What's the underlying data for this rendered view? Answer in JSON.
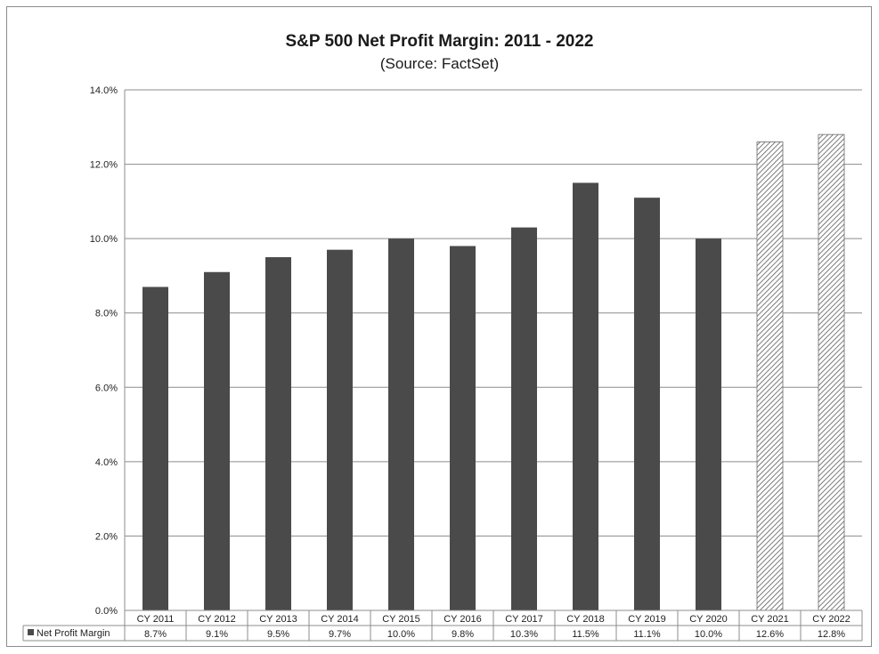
{
  "chart_data": {
    "type": "bar",
    "title": "S&P 500 Net Profit Margin: 2011 - 2022",
    "subtitle": "(Source: FactSet)",
    "categories": [
      "CY 2011",
      "CY 2012",
      "CY 2013",
      "CY 2014",
      "CY 2015",
      "CY 2016",
      "CY 2017",
      "CY 2018",
      "CY 2019",
      "CY 2020",
      "CY 2021",
      "CY 2022"
    ],
    "series": [
      {
        "name": "Net Profit Margin",
        "values": [
          8.7,
          9.1,
          9.5,
          9.7,
          10.0,
          9.8,
          10.3,
          11.5,
          11.1,
          10.0,
          12.6,
          12.8
        ],
        "labels": [
          "8.7%",
          "9.1%",
          "9.5%",
          "9.7%",
          "10.0%",
          "9.8%",
          "10.3%",
          "11.5%",
          "11.1%",
          "10.0%",
          "12.6%",
          "12.8%"
        ],
        "estimated": [
          false,
          false,
          false,
          false,
          false,
          false,
          false,
          false,
          false,
          false,
          true,
          true
        ]
      }
    ],
    "ylim": [
      0,
      14
    ],
    "yticks": [
      "0.0%",
      "2.0%",
      "4.0%",
      "6.0%",
      "8.0%",
      "10.0%",
      "12.0%",
      "14.0%"
    ],
    "grid": true,
    "legend": "data-table",
    "colors": {
      "bar": "#4a4a4a",
      "estimate_hatch": "#5a5a5a",
      "grid": "#8c8c8c"
    }
  }
}
